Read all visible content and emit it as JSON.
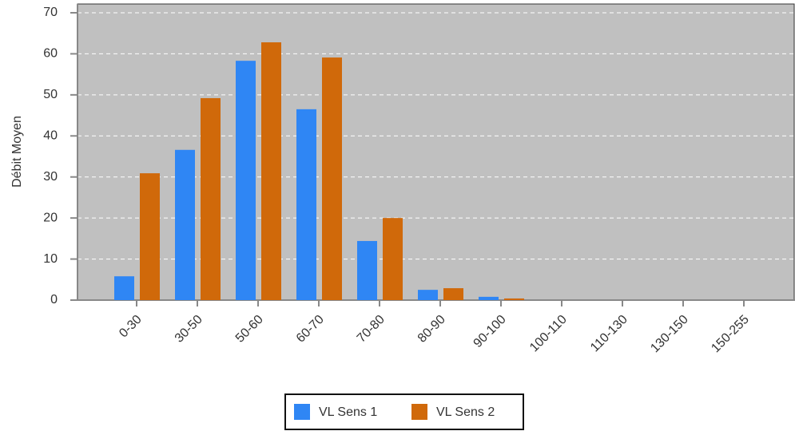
{
  "chart_data": {
    "type": "bar",
    "y_label": "Débit Moyen",
    "categories": [
      "0-30",
      "30-50",
      "50-60",
      "60-70",
      "70-80",
      "80-90",
      "90-100",
      "100-110",
      "110-130",
      "130-150",
      "150-255"
    ],
    "series": [
      {
        "name": "VL Sens 1",
        "color": "#2f86f4",
        "values": [
          5.8,
          36.6,
          58.3,
          46.5,
          14.4,
          2.5,
          0.8,
          0,
          0,
          0,
          0
        ]
      },
      {
        "name": "VL Sens 2",
        "color": "#d0690a",
        "values": [
          30.9,
          49.2,
          62.8,
          59.1,
          20.0,
          2.9,
          0.4,
          0,
          0,
          0,
          0
        ]
      }
    ],
    "ylim": [
      0,
      70
    ],
    "yticks": [
      0,
      10,
      20,
      30,
      40,
      50,
      60,
      70
    ],
    "grid": true
  }
}
